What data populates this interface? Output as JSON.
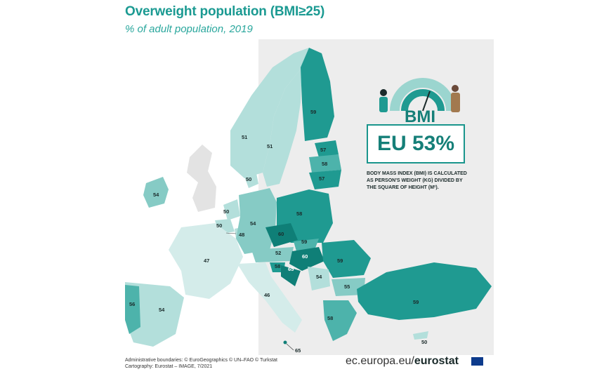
{
  "header": {
    "title": "Overweight population (BMI≥25)",
    "subtitle": "% of adult population, 2019"
  },
  "summary": {
    "eu_value": "EU 53%",
    "bmi_logo_text": "BMI",
    "bmi_definition": "BODY MASS INDEX (BMI) IS CALCULATED AS PERSON'S WEIGHT (KG) DIVIDED BY THE SQUARE OF HEIGHT (M²)."
  },
  "footer": {
    "credits_line1": "Administrative boundaries: © EuroGeographics © UN–FAO © Turkstat",
    "credits_line2": "Cartography: Eurostat – IMAGE, 7/2021",
    "site_prefix": "ec.europa.eu/",
    "site_brand": "eurostat"
  },
  "colors": {
    "sea": "#ffffff",
    "non_data_land": "#e6e6e6",
    "low": "#d4ecea",
    "mid_low": "#b3dfdb",
    "mid": "#86cbc5",
    "mid_high": "#4db3ab",
    "high": "#1f9a91",
    "highest": "#0f7f77",
    "accent": "#1b9a92"
  },
  "map_values": [
    {
      "country": "Finland",
      "value": "59"
    },
    {
      "country": "Norway",
      "value": "51"
    },
    {
      "country": "Sweden",
      "value": "51"
    },
    {
      "country": "Denmark",
      "value": "50"
    },
    {
      "country": "Estonia",
      "value": "57"
    },
    {
      "country": "Latvia",
      "value": "58"
    },
    {
      "country": "Lithuania",
      "value": "57"
    },
    {
      "country": "Ireland",
      "value": "54"
    },
    {
      "country": "Netherlands",
      "value": "50"
    },
    {
      "country": "Belgium",
      "value": "50"
    },
    {
      "country": "Luxembourg",
      "value": "48"
    },
    {
      "country": "Germany",
      "value": "54"
    },
    {
      "country": "Poland",
      "value": "58"
    },
    {
      "country": "Czechia",
      "value": "60"
    },
    {
      "country": "Slovakia",
      "value": "59"
    },
    {
      "country": "Austria",
      "value": "52"
    },
    {
      "country": "Hungary",
      "value": "60"
    },
    {
      "country": "Slovenia",
      "value": "58"
    },
    {
      "country": "Croatia",
      "value": "65"
    },
    {
      "country": "Romania",
      "value": "59"
    },
    {
      "country": "Serbia",
      "value": "54"
    },
    {
      "country": "Bulgaria",
      "value": "55"
    },
    {
      "country": "France",
      "value": "47"
    },
    {
      "country": "Italy",
      "value": "46"
    },
    {
      "country": "Portugal",
      "value": "56"
    },
    {
      "country": "Spain",
      "value": "54"
    },
    {
      "country": "Greece",
      "value": "58"
    },
    {
      "country": "Turkey",
      "value": "59"
    },
    {
      "country": "Cyprus",
      "value": "50"
    },
    {
      "country": "Malta",
      "value": "65"
    }
  ]
}
